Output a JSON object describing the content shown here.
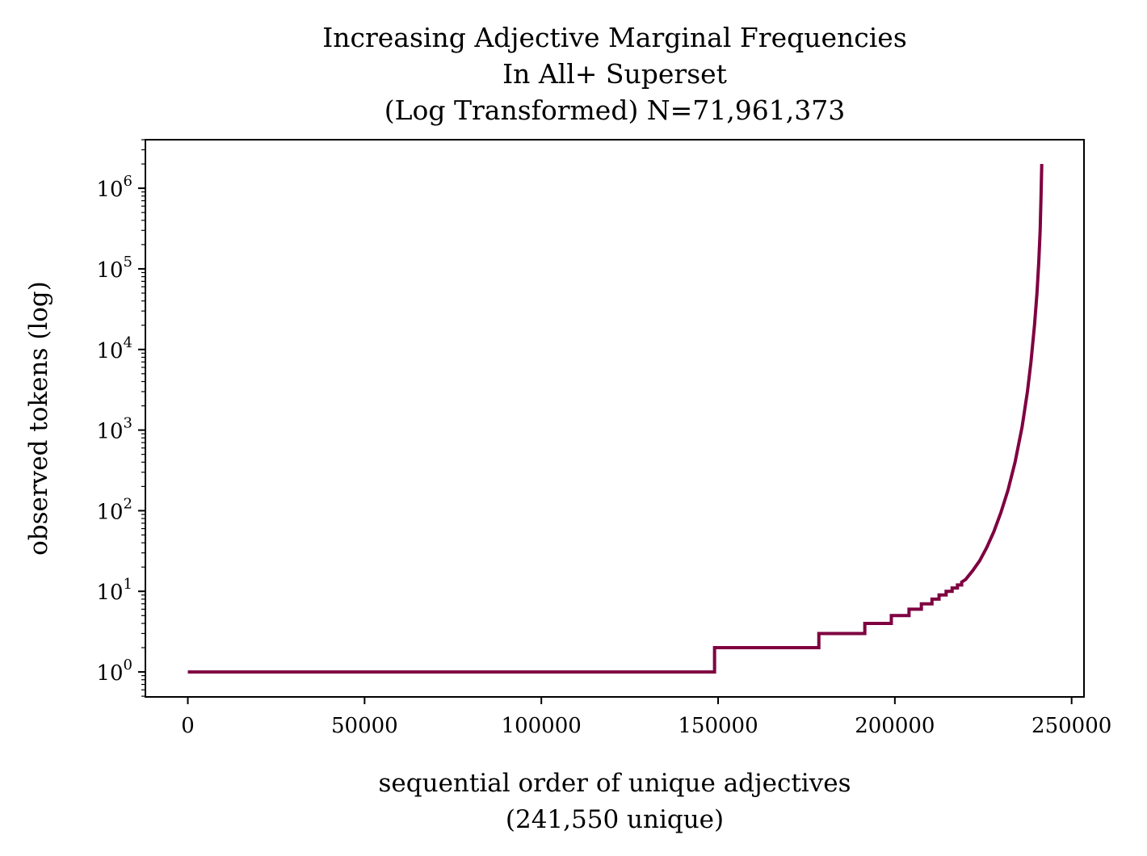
{
  "chart_data": {
    "type": "line",
    "title_lines": [
      "Increasing Adjective Marginal Frequencies",
      "In All+ Superset",
      "(Log Transformed) N=71,961,373"
    ],
    "xlabel_lines": [
      "sequential order of unique adjectives",
      "(241,550 unique)"
    ],
    "ylabel": "observed tokens (log)",
    "x_ticks": [
      0,
      50000,
      100000,
      150000,
      200000,
      250000
    ],
    "x_tick_labels": [
      "0",
      "50000",
      "100000",
      "150000",
      "200000",
      "250000"
    ],
    "y_ticks": [
      1,
      10,
      100,
      1000,
      10000,
      100000,
      1000000
    ],
    "y_tick_labels": [
      {
        "base": "10",
        "exp": "0"
      },
      {
        "base": "10",
        "exp": "1"
      },
      {
        "base": "10",
        "exp": "2"
      },
      {
        "base": "10",
        "exp": "3"
      },
      {
        "base": "10",
        "exp": "4"
      },
      {
        "base": "10",
        "exp": "5"
      },
      {
        "base": "10",
        "exp": "6"
      }
    ],
    "xlim": [
      -12000,
      253500
    ],
    "ylim": [
      0.49,
      4000000
    ],
    "y_scale": "log",
    "grid": false,
    "line_color": "#7f0040",
    "series": [
      {
        "x": [
          0,
          149000,
          149000,
          178500,
          178500,
          191500,
          191500,
          199000,
          199000,
          204000,
          204000,
          207500,
          207500,
          210500,
          210500,
          212500,
          212500,
          214500,
          214500,
          216200,
          216200,
          217700,
          217700,
          218900,
          218900,
          220000,
          222000,
          224000,
          226000,
          228000,
          230000,
          232000,
          234000,
          236000,
          237500,
          238500,
          239500,
          240200,
          240700,
          241100,
          241350,
          241550
        ],
        "y": [
          1,
          1,
          2,
          2,
          3,
          3,
          4,
          4,
          5,
          5,
          6,
          6,
          7,
          7,
          8,
          8,
          9,
          9,
          10,
          10,
          11,
          11,
          12,
          12,
          13,
          14,
          18,
          24,
          35,
          55,
          95,
          180,
          400,
          1100,
          3000,
          7000,
          20000,
          50000,
          120000,
          300000,
          800000,
          2000000
        ]
      }
    ]
  }
}
